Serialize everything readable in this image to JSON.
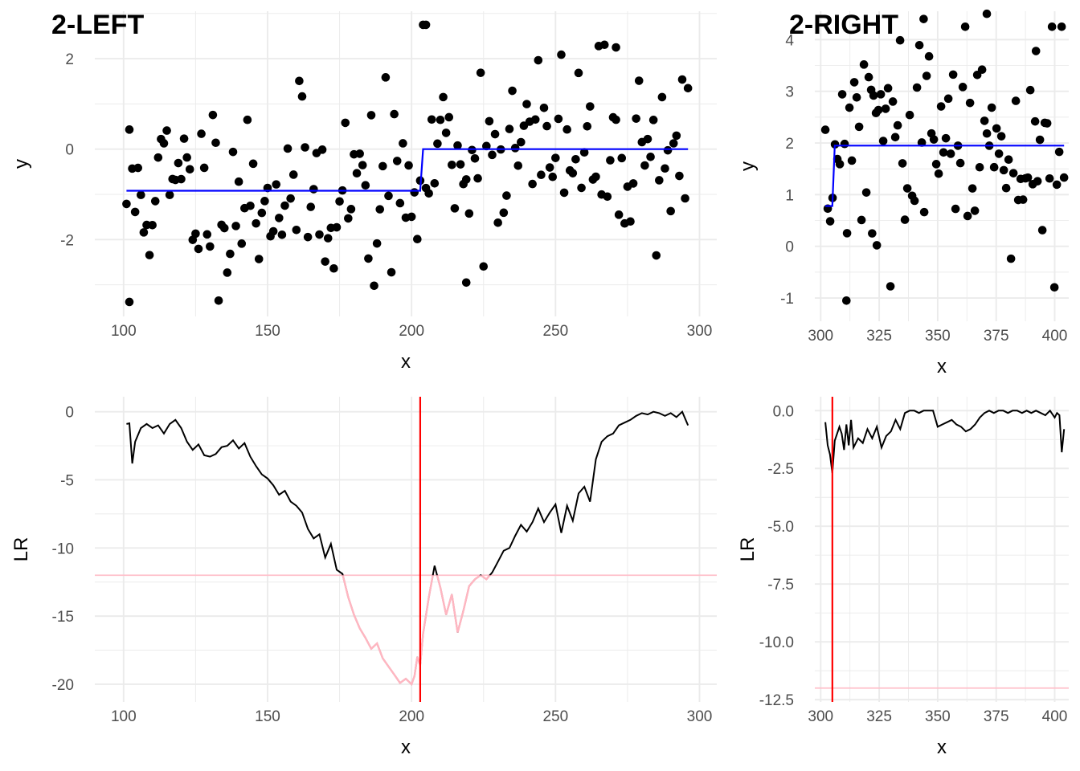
{
  "chart_data": [
    {
      "panel": "top-left",
      "tag": "2-LEFT",
      "type": "scatter",
      "xlabel": "x",
      "ylabel": "y",
      "xlim": [
        90,
        306
      ],
      "ylim": [
        -3.7,
        3.05
      ],
      "xticks": [
        100,
        150,
        200,
        250,
        300
      ],
      "yticks": [
        -2,
        0,
        2
      ],
      "xminor": [
        125,
        175,
        225,
        275
      ],
      "yminor": [
        -3,
        -1,
        1,
        3
      ],
      "grid": true,
      "points_seed": 11,
      "points_x_range": [
        101,
        296
      ],
      "points_count": 196,
      "segments": [
        {
          "color": "#0000ff",
          "x": [
            101,
            203,
            204,
            296
          ],
          "y": [
            -0.92,
            -0.92,
            0.0,
            0.0
          ]
        }
      ],
      "highlight_points": [
        [
          205,
          2.75
        ],
        [
          102,
          -3.38
        ],
        [
          219,
          -2.95
        ],
        [
          271,
          2.25
        ]
      ]
    },
    {
      "panel": "top-right",
      "tag": "2-RIGHT",
      "type": "scatter",
      "xlabel": "x",
      "ylabel": "y",
      "xlim": [
        297.5,
        406
      ],
      "ylim": [
        -1.45,
        4.55
      ],
      "xticks": [
        300,
        325,
        350,
        375,
        400
      ],
      "yticks": [
        -1,
        0,
        1,
        2,
        3,
        4
      ],
      "xminor": [
        312.5,
        337.5,
        362.5,
        387.5
      ],
      "yminor": [
        -0.5,
        0.5,
        1.5,
        2.5,
        3.5
      ],
      "grid": true,
      "points_seed": 29,
      "points_x_range": [
        302,
        404
      ],
      "points_count": 100,
      "segments": [
        {
          "color": "#0000ff",
          "x": [
            302,
            305,
            306,
            404
          ],
          "y": [
            0.78,
            0.78,
            1.95,
            1.95
          ]
        }
      ],
      "highlight_points": [
        [
          311,
          -1.05
        ],
        [
          371,
          4.7
        ],
        [
          344,
          4.4
        ],
        [
          322,
          0.25
        ],
        [
          324,
          0.02
        ],
        [
          392,
          3.78
        ]
      ]
    },
    {
      "panel": "bottom-left",
      "tag": "",
      "type": "line",
      "xlabel": "x",
      "ylabel": "LR",
      "xlim": [
        90,
        306
      ],
      "ylim": [
        -21.3,
        1.1
      ],
      "xticks": [
        100,
        150,
        200,
        250,
        300
      ],
      "yticks": [
        -20,
        -15,
        -10,
        -5,
        0
      ],
      "xminor": [
        125,
        175,
        225,
        275
      ],
      "yminor": [
        -17.5,
        -12.5,
        -7.5,
        -2.5
      ],
      "grid": true,
      "threshold": {
        "y": -12,
        "color": "#ffc0cb"
      },
      "vline": {
        "x": 203,
        "color": "#ff0000"
      },
      "line_color": "#000000",
      "below_color": "#ffb6c1",
      "series": {
        "x": [
          101,
          102,
          103,
          104,
          106,
          108,
          110,
          112,
          114,
          116,
          118,
          120,
          122,
          124,
          126,
          128,
          130,
          132,
          134,
          136,
          138,
          140,
          142,
          144,
          146,
          148,
          150,
          152,
          154,
          156,
          158,
          160,
          162,
          164,
          166,
          168,
          170,
          172,
          174,
          176,
          178,
          180,
          182,
          184,
          186,
          188,
          190,
          192,
          194,
          196,
          198,
          200,
          201,
          202,
          203,
          204,
          206,
          208,
          210,
          212,
          214,
          216,
          218,
          220,
          222,
          224,
          226,
          228,
          230,
          232,
          234,
          236,
          238,
          240,
          242,
          244,
          246,
          248,
          250,
          252,
          254,
          256,
          258,
          260,
          262,
          264,
          266,
          268,
          270,
          272,
          274,
          276,
          278,
          280,
          282,
          284,
          286,
          288,
          290,
          292,
          294,
          296
        ],
        "y": [
          -0.9,
          -0.85,
          -3.8,
          -2.2,
          -1.2,
          -0.9,
          -1.2,
          -1.0,
          -1.6,
          -0.9,
          -0.6,
          -1.2,
          -2.2,
          -2.8,
          -2.4,
          -3.2,
          -3.3,
          -3.1,
          -2.6,
          -2.5,
          -2.1,
          -2.7,
          -2.3,
          -3.3,
          -4.0,
          -4.6,
          -4.9,
          -5.4,
          -6.1,
          -5.8,
          -6.6,
          -6.9,
          -7.4,
          -8.6,
          -9.3,
          -9.0,
          -10.7,
          -9.7,
          -11.6,
          -11.9,
          -13.6,
          -14.9,
          -15.9,
          -16.6,
          -17.4,
          -17.0,
          -18.1,
          -18.7,
          -19.3,
          -19.9,
          -19.6,
          -20.0,
          -19.4,
          -18.0,
          -18.6,
          -16.3,
          -13.6,
          -11.3,
          -12.9,
          -14.9,
          -13.4,
          -16.2,
          -14.6,
          -12.8,
          -12.3,
          -12.0,
          -12.3,
          -11.8,
          -11.0,
          -10.2,
          -10.0,
          -9.1,
          -8.3,
          -8.8,
          -8.1,
          -7.1,
          -8.1,
          -7.4,
          -6.8,
          -8.9,
          -6.9,
          -8.0,
          -6.0,
          -5.5,
          -6.6,
          -3.5,
          -2.2,
          -1.8,
          -1.6,
          -1.0,
          -0.8,
          -0.6,
          -0.3,
          -0.1,
          -0.2,
          0.0,
          -0.1,
          -0.3,
          -0.1,
          -0.4,
          0.0,
          -1.0
        ]
      }
    },
    {
      "panel": "bottom-right",
      "tag": "",
      "type": "line",
      "xlabel": "x",
      "ylabel": "LR",
      "xlim": [
        297.5,
        406
      ],
      "ylim": [
        -12.6,
        0.6
      ],
      "xticks": [
        300,
        325,
        350,
        375,
        400
      ],
      "yticks": [
        -12.5,
        -10.0,
        -7.5,
        -5.0,
        -2.5,
        0.0
      ],
      "ytick_labels": [
        "-12.5",
        "-10.0",
        "-7.5",
        "-5.0",
        "-2.5",
        "0.0"
      ],
      "xminor": [
        312.5,
        337.5,
        362.5,
        387.5
      ],
      "yminor": [
        -11.25,
        -8.75,
        -6.25,
        -3.75,
        -1.25
      ],
      "grid": true,
      "threshold": {
        "y": -12,
        "color": "#ffc0cb"
      },
      "vline": {
        "x": 305,
        "color": "#ff0000"
      },
      "line_color": "#000000",
      "series": {
        "x": [
          302,
          303,
          304,
          305,
          306,
          307,
          308,
          309,
          310,
          311,
          312,
          313,
          314,
          316,
          318,
          320,
          322,
          324,
          326,
          328,
          330,
          332,
          334,
          336,
          338,
          340,
          342,
          344,
          346,
          348,
          350,
          352,
          354,
          356,
          358,
          360,
          362,
          364,
          366,
          368,
          370,
          372,
          374,
          376,
          378,
          380,
          382,
          384,
          386,
          388,
          390,
          392,
          394,
          396,
          398,
          400,
          401,
          402,
          403,
          404
        ],
        "y": [
          -0.5,
          -1.5,
          -1.9,
          -2.7,
          -1.3,
          -1.0,
          -0.7,
          -1.0,
          -1.7,
          -0.6,
          -1.5,
          -0.4,
          -1.6,
          -1.2,
          -1.4,
          -0.8,
          -1.2,
          -0.7,
          -1.6,
          -1.1,
          -0.9,
          -0.4,
          -0.8,
          -0.1,
          0.0,
          0.0,
          -0.1,
          0.0,
          0.0,
          0.0,
          -0.7,
          -0.6,
          -0.5,
          -0.4,
          -0.6,
          -0.7,
          -0.9,
          -0.8,
          -0.6,
          -0.3,
          -0.1,
          0.0,
          -0.1,
          0.0,
          0.0,
          -0.1,
          0.0,
          0.0,
          -0.1,
          0.0,
          -0.1,
          0.0,
          -0.1,
          -0.2,
          0.0,
          -0.3,
          -0.1,
          -0.2,
          -1.8,
          -0.8
        ]
      }
    }
  ]
}
